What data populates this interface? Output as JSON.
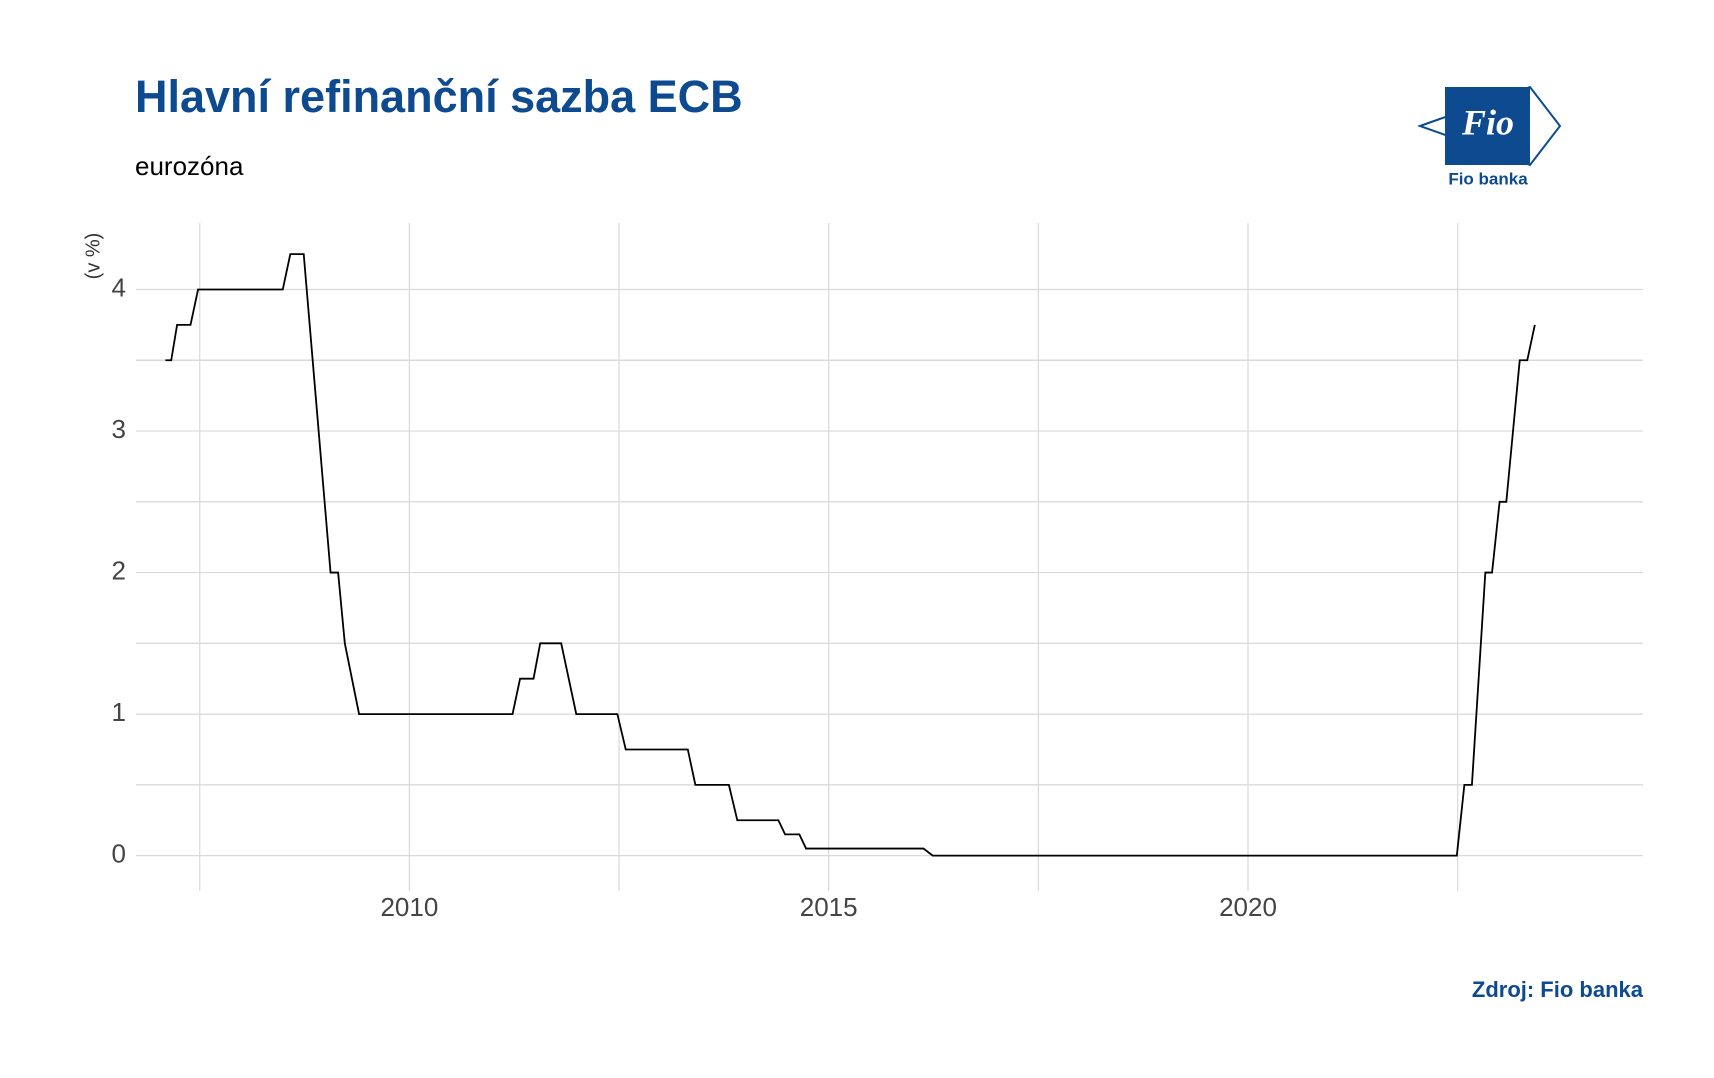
{
  "chart_data": {
    "type": "line",
    "title": "Hlavní refinanční sazba ECB",
    "subtitle": "eurozóna",
    "y_label": "(v %)",
    "source": "Zdroj: Fio banka",
    "logo": "Fio",
    "logo_caption": "Fio banka",
    "grid": true,
    "x": [
      2007.09,
      2007.16,
      2007.23,
      2007.39,
      2007.48,
      2008.49,
      2008.58,
      2008.74,
      2009.06,
      2009.15,
      2009.23,
      2009.4,
      2011.23,
      2011.32,
      2011.48,
      2011.56,
      2011.81,
      2011.99,
      2012.48,
      2012.58,
      2013.32,
      2013.41,
      2013.81,
      2013.91,
      2014.4,
      2014.48,
      2014.65,
      2014.73,
      2016.13,
      2016.24,
      2022.49,
      2022.58,
      2022.67,
      2022.83,
      2022.91,
      2023.0,
      2023.08,
      2023.24,
      2023.33,
      2023.42
    ],
    "series": [
      {
        "color": "#000000",
        "values": [
          3.5,
          3.5,
          3.75,
          3.75,
          4.0,
          4.0,
          4.25,
          4.25,
          2.0,
          2.0,
          1.5,
          1.0,
          1.0,
          1.25,
          1.25,
          1.5,
          1.5,
          1.0,
          1.0,
          0.75,
          0.75,
          0.5,
          0.5,
          0.25,
          0.25,
          0.15,
          0.15,
          0.05,
          0.05,
          0,
          0,
          0.5,
          0.5,
          2.0,
          2.0,
          2.5,
          2.5,
          3.5,
          3.5,
          3.75
        ]
      }
    ],
    "xlim": [
      2006.74,
      2024.71
    ],
    "xticks": [
      2010,
      2015,
      2020
    ],
    "ylim": [
      -0.25,
      4.47
    ],
    "yticks": [
      0,
      1,
      2,
      3,
      4
    ]
  }
}
